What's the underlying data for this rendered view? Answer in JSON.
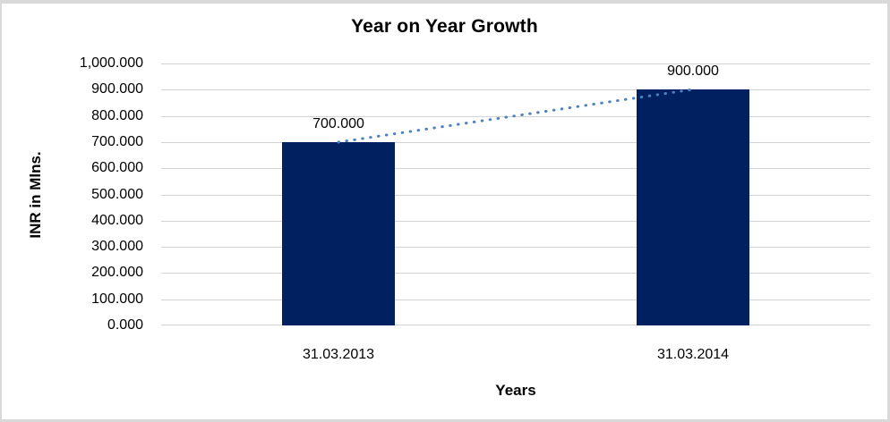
{
  "chart_data": {
    "type": "bar",
    "title": "Year on Year Growth",
    "xlabel": "Years",
    "ylabel": "INR in Mlns.",
    "categories": [
      "31.03.2013",
      "31.03.2014"
    ],
    "values": [
      700,
      900
    ],
    "data_labels": [
      "700.000",
      "900.000"
    ],
    "ylim": [
      0,
      1000
    ],
    "ytick_step": 100,
    "ytick_labels": [
      "1,000.000",
      "900.000",
      "800.000",
      "700.000",
      "600.000",
      "500.000",
      "400.000",
      "300.000",
      "200.000",
      "100.000",
      "0.000"
    ],
    "grid": true,
    "legend": false,
    "trendline": {
      "style": "dotted",
      "between_values": [
        700,
        900
      ]
    },
    "colors": {
      "bar": "#002060",
      "gridline": "#D3D3D3",
      "axis_line": "#D3D3D3",
      "trendline": "#4E81BD",
      "frame_border": "#D9D9D9",
      "text": "#000000",
      "background": "#FFFFFF"
    }
  }
}
